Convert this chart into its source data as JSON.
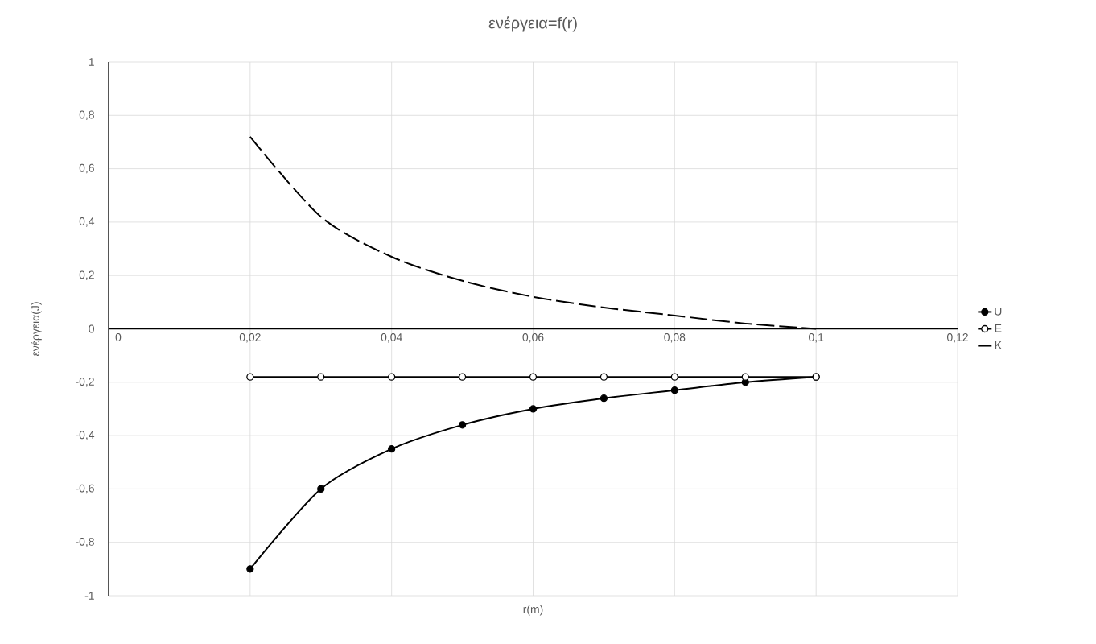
{
  "chart_data": {
    "type": "line",
    "title": "ενέργεια=f(r)",
    "xlabel": "r(m)",
    "ylabel": "ενέργεια(J)",
    "x": [
      0.02,
      0.03,
      0.04,
      0.05,
      0.06,
      0.07,
      0.08,
      0.09,
      0.1
    ],
    "series": [
      {
        "name": "U",
        "color": "#000000",
        "marker": "circle",
        "line_style": "solid",
        "values": [
          -0.9,
          -0.6,
          -0.45,
          -0.36,
          -0.3,
          -0.26,
          -0.23,
          -0.2,
          -0.18
        ]
      },
      {
        "name": "E",
        "color": "#000000",
        "marker": "circle",
        "line_style": "solid",
        "values": [
          -0.18,
          -0.18,
          -0.18,
          -0.18,
          -0.18,
          -0.18,
          -0.18,
          -0.18,
          -0.18
        ]
      },
      {
        "name": "K",
        "color": "#000000",
        "marker": "none",
        "line_style": "dashed",
        "values": [
          0.72,
          0.42,
          0.27,
          0.18,
          0.12,
          0.08,
          0.05,
          0.02,
          0
        ]
      }
    ],
    "xlim": [
      0,
      0.12
    ],
    "ylim": [
      -1,
      1
    ],
    "xticks": [
      0,
      {
        "value": 0.02,
        "label": "0,02"
      },
      {
        "value": 0.04,
        "label": "0,04"
      },
      {
        "value": 0.06,
        "label": "0,06"
      },
      {
        "value": 0.08,
        "label": "0,08"
      },
      {
        "value": 0.1,
        "label": "0,1"
      },
      {
        "value": 0.12,
        "label": "0,12"
      }
    ],
    "yticks": [
      -1,
      {
        "value": -0.8,
        "label": "-0,8"
      },
      {
        "value": -0.6,
        "label": "-0,6"
      },
      {
        "value": -0.4,
        "label": "-0,4"
      },
      {
        "value": -0.2,
        "label": "-0,2"
      },
      0,
      {
        "value": 0.2,
        "label": "0,2"
      },
      {
        "value": 0.4,
        "label": "0,4"
      },
      {
        "value": 0.6,
        "label": "0,6"
      },
      {
        "value": 0.8,
        "label": "0,8"
      },
      1
    ],
    "grid": true,
    "legend": "right"
  }
}
